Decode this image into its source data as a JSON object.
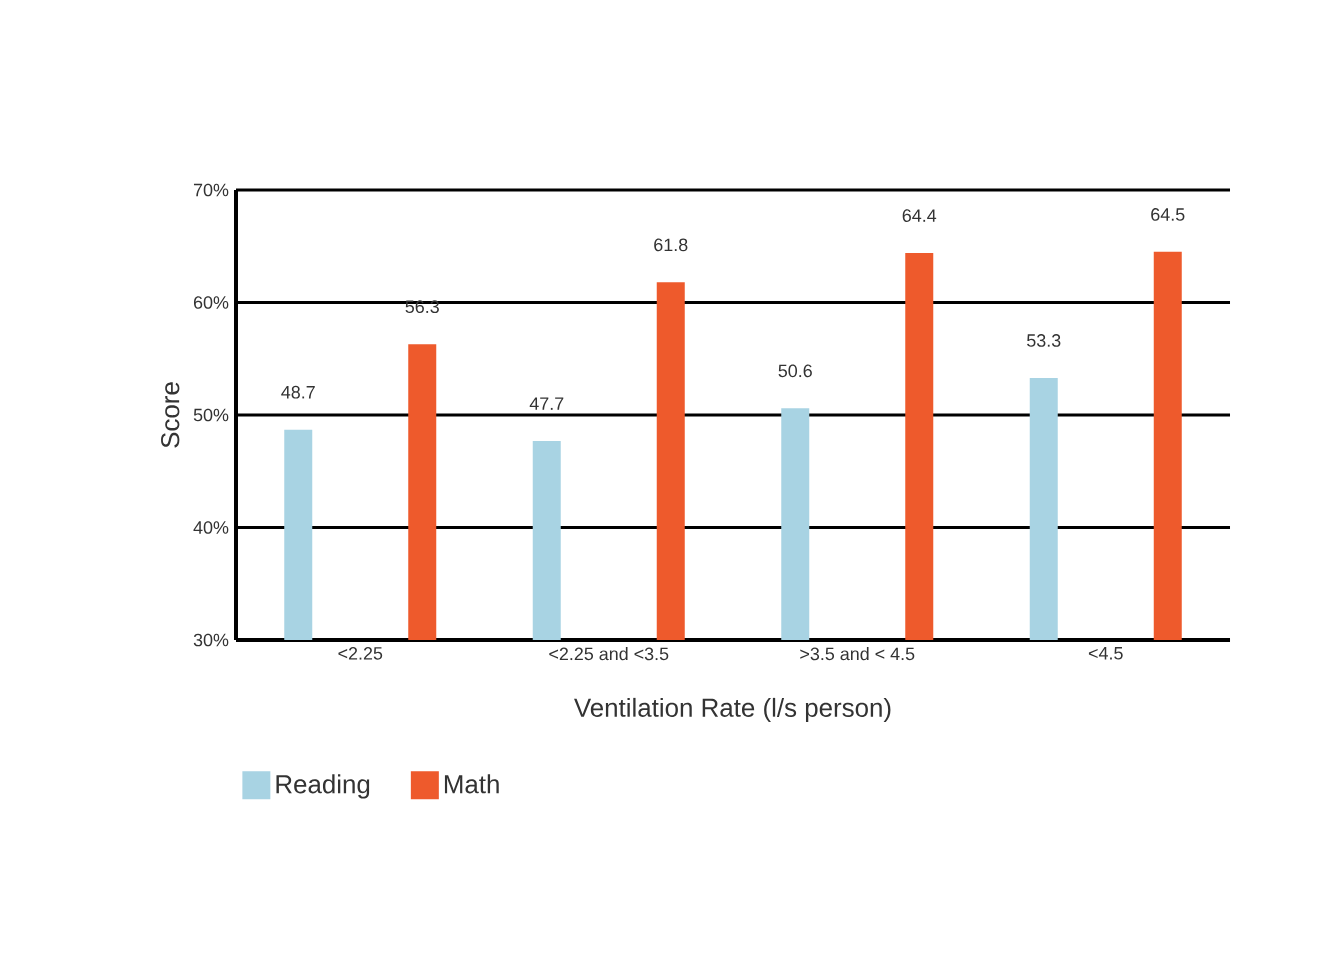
{
  "chart_data": {
    "type": "bar",
    "xlabel": "Ventilation Rate (l/s person)",
    "ylabel": "Score",
    "categories": [
      "<2.25",
      "<2.25 and <3.5",
      ">3.5 and < 4.5",
      "<4.5"
    ],
    "series": [
      {
        "name": "Reading",
        "color": "#a8d3e3",
        "values": [
          48.7,
          47.7,
          50.6,
          53.3
        ]
      },
      {
        "name": "Math",
        "color": "#ee5a2c",
        "values": [
          56.3,
          61.8,
          64.4,
          64.5
        ]
      }
    ],
    "ylim": [
      30,
      70
    ],
    "yticks": [
      {
        "value": 30,
        "label": "30%"
      },
      {
        "value": 40,
        "label": "40%"
      },
      {
        "value": 50,
        "label": "50%"
      },
      {
        "value": 60,
        "label": "60%"
      },
      {
        "value": 70,
        "label": "70%"
      }
    ],
    "grid": "y",
    "legend": "bottom left",
    "data_labels": true
  }
}
